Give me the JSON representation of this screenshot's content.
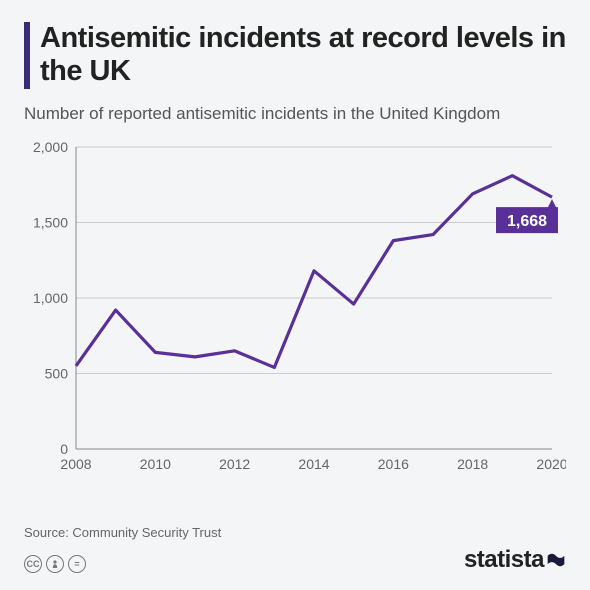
{
  "title": "Antisemitic incidents at record levels in the UK",
  "subtitle": "Number of reported antisemitic incidents in the United Kingdom",
  "source": "Source: Community Security Trust",
  "brand": "statista",
  "chart": {
    "type": "line",
    "line_color": "#593098",
    "line_width": 3.2,
    "background_color": "#f4f5f7",
    "grid_color": "#cccccc",
    "axis_color": "#888888",
    "label_fontsize": 14,
    "xlim": [
      2008,
      2020
    ],
    "ylim": [
      0,
      2000
    ],
    "ytick_step": 500,
    "xtick_step": 2,
    "years": [
      2008,
      2009,
      2010,
      2011,
      2012,
      2013,
      2014,
      2015,
      2016,
      2017,
      2018,
      2019,
      2020
    ],
    "values": [
      550,
      920,
      640,
      610,
      650,
      540,
      1180,
      960,
      1380,
      1420,
      1690,
      1810,
      1668
    ],
    "callout": {
      "year": 2020,
      "value": 1668,
      "label": "1,668",
      "bg": "#593098",
      "text_color": "#ffffff"
    },
    "ytick_labels": [
      "0",
      "500",
      "1,000",
      "1,500",
      "2,000"
    ]
  },
  "cc_badges": [
    "cc",
    "i",
    "="
  ]
}
